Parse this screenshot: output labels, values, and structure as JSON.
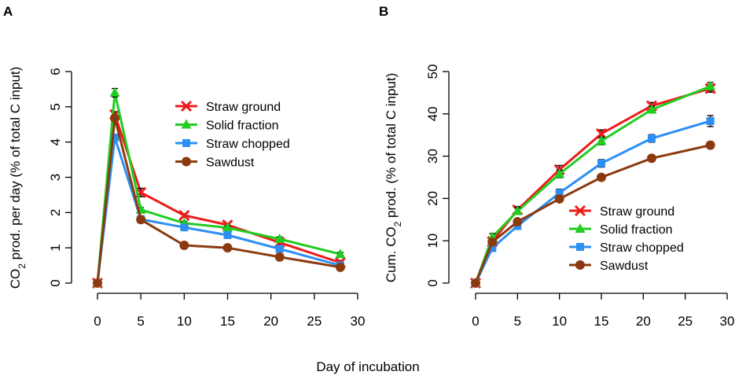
{
  "figure": {
    "shared_xlabel": "Day of incubation"
  },
  "chart_data": [
    {
      "panel": "A",
      "type": "line",
      "title": "",
      "xlabel": "",
      "ylabel_parts": [
        "CO",
        "2",
        " prod. per day (% of total C input)"
      ],
      "xlim": [
        0,
        30
      ],
      "ylim": [
        0,
        6
      ],
      "xticks": [
        0,
        5,
        10,
        15,
        20,
        25,
        30
      ],
      "yticks": [
        0,
        1,
        2,
        3,
        4,
        5,
        6
      ],
      "legend_position": "top-right",
      "grid": false,
      "series": [
        {
          "name": "Straw ground",
          "color": "#ee1b1b",
          "marker": "x",
          "x": [
            0,
            2,
            5,
            10,
            15,
            21,
            28
          ],
          "y": [
            0,
            4.78,
            2.57,
            1.92,
            1.65,
            1.15,
            0.58
          ],
          "err": [
            0.02,
            0.08,
            0.12,
            0.05,
            0.05,
            0.08,
            0.06
          ]
        },
        {
          "name": "Solid fraction",
          "color": "#22cc22",
          "marker": "triangle",
          "x": [
            0,
            2,
            5,
            10,
            15,
            21,
            28
          ],
          "y": [
            0,
            5.4,
            2.08,
            1.7,
            1.57,
            1.25,
            0.82
          ],
          "err": [
            0.02,
            0.12,
            0.06,
            0.05,
            0.05,
            0.06,
            0.05
          ]
        },
        {
          "name": "Straw chopped",
          "color": "#2e8ff2",
          "marker": "square",
          "x": [
            0,
            2,
            5,
            10,
            15,
            21,
            28
          ],
          "y": [
            0,
            4.13,
            1.81,
            1.58,
            1.36,
            0.97,
            0.5
          ],
          "err": [
            0.02,
            0.08,
            0.07,
            0.08,
            0.08,
            0.07,
            0.05
          ]
        },
        {
          "name": "Sawdust",
          "color": "#8b3a0f",
          "marker": "circle",
          "x": [
            0,
            2,
            5,
            10,
            15,
            21,
            28
          ],
          "y": [
            0,
            4.68,
            1.8,
            1.07,
            1.0,
            0.74,
            0.45
          ],
          "err": [
            0.02,
            0.06,
            0.05,
            0.04,
            0.04,
            0.05,
            0.05
          ]
        }
      ]
    },
    {
      "panel": "B",
      "type": "line",
      "title": "",
      "xlabel": "",
      "ylabel_parts": [
        "Cum. CO",
        "2",
        " prod. (% of total C input)"
      ],
      "xlim": [
        0,
        30
      ],
      "ylim": [
        0,
        50
      ],
      "xticks": [
        0,
        5,
        10,
        15,
        20,
        25,
        30
      ],
      "yticks": [
        0,
        10,
        20,
        30,
        40,
        50
      ],
      "legend_position": "bottom-right",
      "grid": false,
      "series": [
        {
          "name": "Straw ground",
          "color": "#ee1b1b",
          "marker": "x",
          "x": [
            0,
            2,
            5,
            10,
            15,
            21,
            28
          ],
          "y": [
            0,
            9.8,
            17.3,
            26.8,
            35.3,
            41.9,
            46.0
          ],
          "err": [
            0.2,
            0.8,
            0.8,
            1.0,
            0.9,
            0.8,
            0.9
          ]
        },
        {
          "name": "Solid fraction",
          "color": "#22cc22",
          "marker": "triangle",
          "x": [
            0,
            2,
            5,
            10,
            15,
            21,
            28
          ],
          "y": [
            0,
            10.9,
            17.0,
            25.8,
            33.6,
            41.0,
            46.5
          ],
          "err": [
            0.2,
            0.8,
            0.8,
            0.9,
            0.9,
            0.8,
            0.9
          ]
        },
        {
          "name": "Straw chopped",
          "color": "#2e8ff2",
          "marker": "square",
          "x": [
            0,
            2,
            5,
            10,
            15,
            21,
            28
          ],
          "y": [
            0,
            8.3,
            13.5,
            21.3,
            28.3,
            34.2,
            38.3
          ],
          "err": [
            0.2,
            0.8,
            0.8,
            0.9,
            0.9,
            0.9,
            1.3
          ]
        },
        {
          "name": "Sawdust",
          "color": "#8b3a0f",
          "marker": "circle",
          "x": [
            0,
            2,
            5,
            10,
            15,
            21,
            28
          ],
          "y": [
            0,
            9.7,
            14.5,
            19.9,
            25.0,
            29.5,
            32.6
          ],
          "err": [
            0.2,
            0.6,
            0.6,
            0.6,
            0.6,
            0.6,
            0.8
          ]
        }
      ]
    }
  ]
}
